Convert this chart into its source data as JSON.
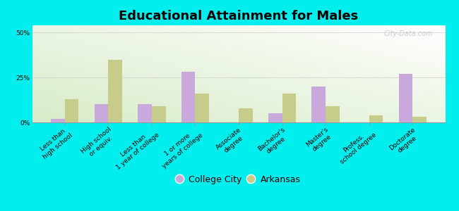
{
  "title": "Educational Attainment for Males",
  "categories": [
    "Less than\nhigh school",
    "High school\nor equiv.",
    "Less than\n1 year of college",
    "1 or more\nyears of college",
    "Associate\ndegree",
    "Bachelor's\ndegree",
    "Master's\ndegree",
    "Profess.\nschool degree",
    "Doctorate\ndegree"
  ],
  "college_city": [
    2,
    10,
    10,
    28,
    0,
    5,
    20,
    0,
    27
  ],
  "arkansas": [
    13,
    35,
    9,
    16,
    8,
    16,
    9,
    4,
    3
  ],
  "college_city_color": "#c9a8dc",
  "arkansas_color": "#c8cc8a",
  "bg_color": "#00eeee",
  "plot_bg_color": "#eef5e8",
  "yticks": [
    0,
    25,
    50
  ],
  "ylim": [
    0,
    54
  ],
  "bar_width": 0.32,
  "legend_labels": [
    "College City",
    "Arkansas"
  ],
  "title_fontsize": 13,
  "tick_fontsize": 6.5,
  "legend_fontsize": 9,
  "watermark": "City-Data.com"
}
